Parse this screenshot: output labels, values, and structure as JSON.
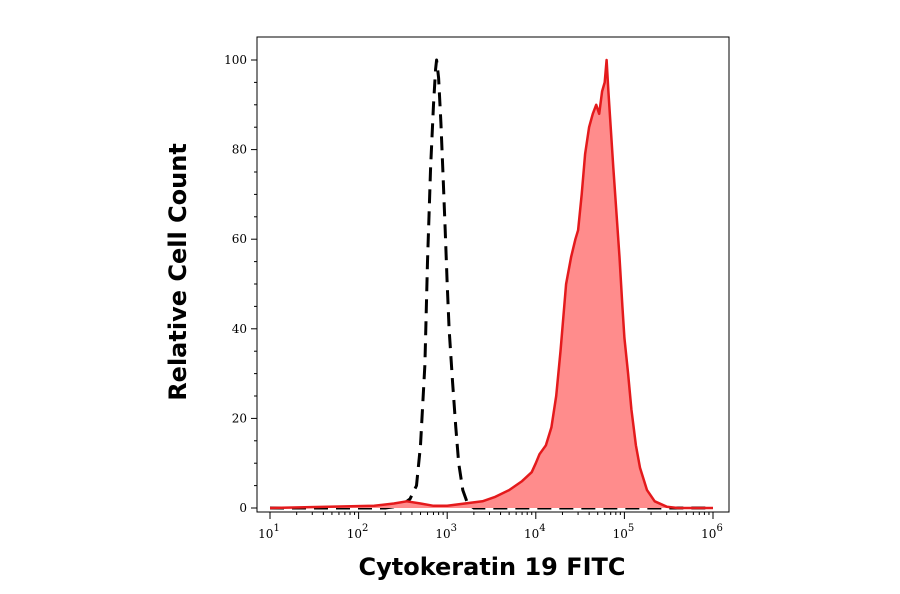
{
  "chart_data": {
    "type": "area",
    "title": "",
    "xlabel": "Cytokeratin 19 FITC",
    "ylabel": "Relative Cell Count",
    "x_scale": "log",
    "xlim": [
      10,
      1000000
    ],
    "ylim": [
      0,
      100
    ],
    "x_ticks": [
      {
        "value": 10,
        "base": "10",
        "exp": "1"
      },
      {
        "value": 100,
        "base": "10",
        "exp": "2"
      },
      {
        "value": 1000,
        "base": "10",
        "exp": "3"
      },
      {
        "value": 10000,
        "base": "10",
        "exp": "4"
      },
      {
        "value": 100000,
        "base": "10",
        "exp": "5"
      },
      {
        "value": 1000000,
        "base": "10",
        "exp": "6"
      }
    ],
    "y_ticks": [
      0,
      20,
      40,
      60,
      80,
      100
    ],
    "grid": false,
    "legend": "none",
    "series": [
      {
        "style": "dashed-outline",
        "color": "#000000",
        "points": [
          [
            10,
            0
          ],
          [
            200,
            0
          ],
          [
            300,
            0.5
          ],
          [
            380,
            2
          ],
          [
            450,
            5
          ],
          [
            500,
            14
          ],
          [
            560,
            32
          ],
          [
            600,
            55
          ],
          [
            650,
            76
          ],
          [
            700,
            90
          ],
          [
            740,
            98
          ],
          [
            760,
            100
          ],
          [
            800,
            96
          ],
          [
            850,
            86
          ],
          [
            900,
            74
          ],
          [
            950,
            62
          ],
          [
            1000,
            50
          ],
          [
            1050,
            40
          ],
          [
            1150,
            28
          ],
          [
            1250,
            18
          ],
          [
            1350,
            10
          ],
          [
            1500,
            4
          ],
          [
            1700,
            1
          ],
          [
            2000,
            0
          ],
          [
            1000000,
            0
          ]
        ]
      },
      {
        "style": "filled",
        "color": "#e41a1c",
        "fill": "#ff8c8c",
        "points": [
          [
            10,
            0
          ],
          [
            150,
            0.5
          ],
          [
            250,
            1
          ],
          [
            350,
            1.5
          ],
          [
            500,
            1
          ],
          [
            700,
            0.5
          ],
          [
            1000,
            0.5
          ],
          [
            2500,
            1.5
          ],
          [
            3500,
            2.5
          ],
          [
            5000,
            4
          ],
          [
            7000,
            6
          ],
          [
            9000,
            8
          ],
          [
            10000,
            10
          ],
          [
            11000,
            12
          ],
          [
            13000,
            14
          ],
          [
            15000,
            18
          ],
          [
            17000,
            25
          ],
          [
            19000,
            35
          ],
          [
            22000,
            50
          ],
          [
            25000,
            56
          ],
          [
            28000,
            60
          ],
          [
            30000,
            62
          ],
          [
            33000,
            70
          ],
          [
            36000,
            79
          ],
          [
            40000,
            85
          ],
          [
            44000,
            88
          ],
          [
            48000,
            90
          ],
          [
            52000,
            88
          ],
          [
            56000,
            93
          ],
          [
            60000,
            95
          ],
          [
            63000,
            100
          ],
          [
            66000,
            93
          ],
          [
            70000,
            85
          ],
          [
            75000,
            76
          ],
          [
            80000,
            68
          ],
          [
            88000,
            56
          ],
          [
            95000,
            45
          ],
          [
            100000,
            38
          ],
          [
            110000,
            30
          ],
          [
            120000,
            22
          ],
          [
            135000,
            14
          ],
          [
            150000,
            9
          ],
          [
            180000,
            4
          ],
          [
            220000,
            1.5
          ],
          [
            300000,
            0.3
          ],
          [
            400000,
            0
          ],
          [
            1000000,
            0
          ]
        ]
      }
    ]
  }
}
